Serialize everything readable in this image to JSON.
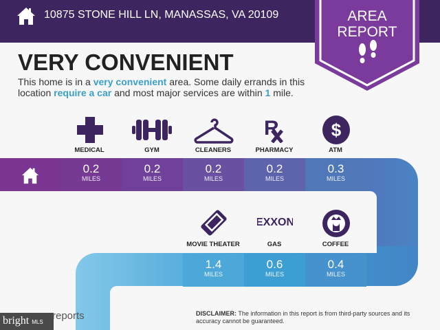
{
  "header": {
    "address": "10875 STONE HILL LN, MANASSAS, VA 20109",
    "badge_line1": "AREA",
    "badge_line2": "REPORT",
    "home_icon": "house-icon",
    "badge_icon": "footprints-icon"
  },
  "summary": {
    "title": "VERY CONVENIENT",
    "text_1": "This home is in a ",
    "hl_1": "very convenient",
    "text_2": " area. Some daily errands in this location ",
    "hl_2": "require a car",
    "text_3": " and most major services are within ",
    "hl_3": "1",
    "text_4": " mile."
  },
  "top_row": [
    {
      "label": "MEDICAL",
      "value": "0.2",
      "unit": "MILES",
      "icon": "medical-cross-icon"
    },
    {
      "label": "GYM",
      "value": "0.2",
      "unit": "MILES",
      "icon": "dumbbell-icon"
    },
    {
      "label": "CLEANERS",
      "value": "0.2",
      "unit": "MILES",
      "icon": "hanger-icon"
    },
    {
      "label": "PHARMACY",
      "value": "0.2",
      "unit": "MILES",
      "icon": "rx-icon"
    },
    {
      "label": "ATM",
      "value": "0.3",
      "unit": "MILES",
      "icon": "dollar-icon"
    }
  ],
  "bottom_row": [
    {
      "label": "MOVIE THEATER",
      "value": "1.4",
      "unit": "MILES",
      "icon": "ticket-icon"
    },
    {
      "label": "GAS",
      "value": "0.6",
      "unit": "MILES",
      "icon": "exxon-logo",
      "logo_text": "EXXON"
    },
    {
      "label": "COFFEE",
      "value": "0.4",
      "unit": "MILES",
      "icon": "starbucks-logo"
    }
  ],
  "footer": {
    "disclaimer_label": "DISCLAIMER:",
    "disclaimer_text": " The information in this report is from third-party sources and its accuracy cannot be guaranteed.",
    "logo_text": "reports",
    "watermark": "bright",
    "watermark_small": "MLS"
  },
  "colors": {
    "header": "#3d2560",
    "badge": "#7b3b9c",
    "icon": "#3d2560",
    "highlight": "#3aa0c8"
  }
}
